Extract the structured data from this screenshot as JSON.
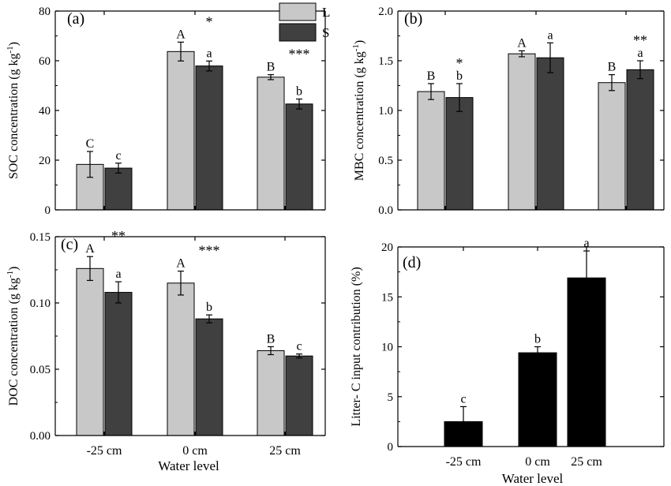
{
  "figure": {
    "legend": [
      {
        "label": "L",
        "color": "#c8c8c8"
      },
      {
        "label": "S",
        "color": "#404040"
      }
    ]
  },
  "chart_data": [
    {
      "panel_label": "(a)",
      "type": "bar",
      "categories": [
        "-25 cm",
        "0 cm",
        "25 cm"
      ],
      "ylabel": "SOC concentration (g kg",
      "ylabel_sup": "-1",
      "ylabel_end": ")",
      "ylim": [
        0,
        80
      ],
      "yticks": [
        0,
        20,
        40,
        60,
        80
      ],
      "ytick_labels": [
        "0",
        "20",
        "40",
        "60",
        "80"
      ],
      "series": [
        {
          "name": "L",
          "color": "#c8c8c8",
          "values": [
            18.3,
            63.7,
            53.4
          ],
          "errors": [
            5.2,
            3.8,
            1.0
          ],
          "letters": [
            "C",
            "A",
            "B"
          ]
        },
        {
          "name": "S",
          "color": "#404040",
          "values": [
            16.8,
            57.9,
            42.6
          ],
          "errors": [
            2.0,
            2.0,
            2.0
          ],
          "letters": [
            "c",
            "a",
            "b"
          ]
        }
      ],
      "significance": [
        "",
        "*",
        "***"
      ]
    },
    {
      "panel_label": "(b)",
      "type": "bar",
      "categories": [
        "-25 cm",
        "0 cm",
        "25 cm"
      ],
      "ylabel": "MBC concentration (g kg",
      "ylabel_sup": "-1",
      "ylabel_end": ")",
      "ylim": [
        0,
        2.0
      ],
      "yticks": [
        0,
        0.5,
        1.0,
        1.5,
        2.0
      ],
      "ytick_labels": [
        "0.0",
        "0.5",
        "1.0",
        "1.5",
        "2.0"
      ],
      "series": [
        {
          "name": "L",
          "color": "#c8c8c8",
          "values": [
            1.19,
            1.57,
            1.28
          ],
          "errors": [
            0.08,
            0.03,
            0.08
          ],
          "letters": [
            "B",
            "A",
            "B"
          ]
        },
        {
          "name": "S",
          "color": "#404040",
          "values": [
            1.13,
            1.53,
            1.41
          ],
          "errors": [
            0.14,
            0.15,
            0.09
          ],
          "letters": [
            "b",
            "a",
            "a"
          ]
        }
      ],
      "significance": [
        "*",
        "",
        "**"
      ]
    },
    {
      "panel_label": "(c)",
      "type": "bar",
      "categories": [
        "-25 cm",
        "0 cm",
        "25 cm"
      ],
      "xlabel": "Water level",
      "ylabel": "DOC concentration (g kg",
      "ylabel_sup": "-1",
      "ylabel_end": ")",
      "ylim": [
        0,
        0.15
      ],
      "yticks": [
        0,
        0.05,
        0.1,
        0.15
      ],
      "ytick_labels": [
        "0.00",
        "0.05",
        "0.10",
        "0.15"
      ],
      "series": [
        {
          "name": "L",
          "color": "#c8c8c8",
          "values": [
            0.126,
            0.115,
            0.064
          ],
          "errors": [
            0.009,
            0.009,
            0.003
          ],
          "letters": [
            "A",
            "A",
            "B"
          ]
        },
        {
          "name": "S",
          "color": "#404040",
          "values": [
            0.108,
            0.088,
            0.06
          ],
          "errors": [
            0.008,
            0.003,
            0.0015
          ],
          "letters": [
            "a",
            "b",
            "c"
          ]
        }
      ],
      "significance": [
        "**",
        "***",
        ""
      ]
    },
    {
      "panel_label": "(d)",
      "type": "bar",
      "categories": [
        "-25 cm",
        "0 cm",
        "25 cm"
      ],
      "xlabel": "Water  level",
      "ylabel": "Litter- C input contribution (%)",
      "ylim": [
        0,
        20
      ],
      "yticks": [
        0,
        5,
        10,
        15,
        20
      ],
      "ytick_labels": [
        "0",
        "5",
        "10",
        "15",
        "20"
      ],
      "series": [
        {
          "color": "#000000",
          "values": [
            2.5,
            9.4,
            16.9
          ],
          "errors": [
            1.5,
            0.6,
            2.7
          ],
          "letters": [
            "c",
            "b",
            "a"
          ]
        }
      ]
    }
  ]
}
